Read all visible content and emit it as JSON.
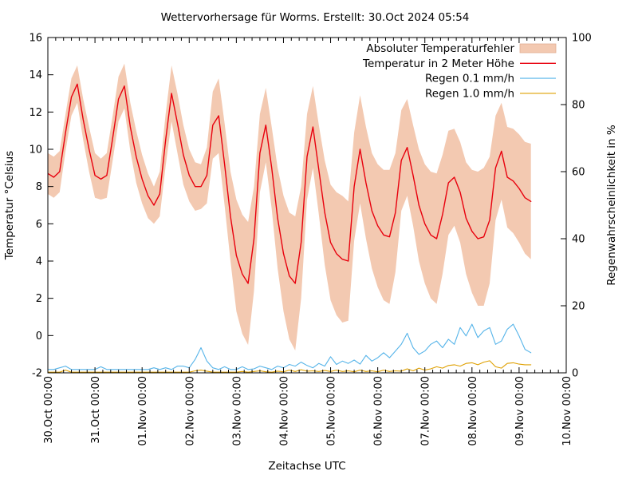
{
  "title": "Wettervorhersage für Worms. Erstellt: 30.Oct 2024 05:54",
  "axes": {
    "x_label": "Zeitachse UTC",
    "y_left_label": "Temperatur °Celsius",
    "y_right_label": "Regenwahrscheinlichkeit in %",
    "y_left_ticks": [
      16,
      14,
      12,
      10,
      8,
      6,
      4,
      2,
      0,
      -2
    ],
    "y_right_ticks": [
      100,
      80,
      60,
      40,
      20,
      0
    ],
    "x_tick_labels": [
      "30.Oct 00:00",
      "31.Oct 00:00",
      "01.Nov 00:00",
      "02.Nov 00:00",
      "03.Nov 00:00",
      "04.Nov 00:00",
      "05.Nov 00:00",
      "06.Nov 00:00",
      "07.Nov 00:00",
      "08.Nov 00:00",
      "09.Nov 00:00",
      "10.Nov 00:00"
    ]
  },
  "legend": [
    {
      "label": "Absoluter Temperaturfehler",
      "type": "band",
      "color": "#f3c9b1"
    },
    {
      "label": "Temperatur in 2 Meter Höhe",
      "type": "line",
      "color": "#e8000d"
    },
    {
      "label": "Regen 0.1 mm/h",
      "type": "line",
      "color": "#56b4e9"
    },
    {
      "label": "Regen 1.0 mm/h",
      "type": "line",
      "color": "#dfa000"
    }
  ],
  "colors": {
    "band": "#f3c9b1",
    "temperature": "#e8000d",
    "rain01": "#56b4e9",
    "rain10": "#dfa000",
    "border": "#000000"
  },
  "chart_data": {
    "type": "line",
    "title": "Wettervorhersage für Worms. Erstellt: 30.Oct 2024 05:54",
    "xlabel": "Zeitachse UTC",
    "ylabel_left": "Temperatur °Celsius",
    "ylabel_right": "Regenwahrscheinlichkeit in %",
    "x_unit": "hours since 30.Oct 2024 00:00 UTC",
    "x_total_hours": 264,
    "temp_axis_range": [
      -2,
      16
    ],
    "rain_axis_range": [
      0,
      100
    ],
    "grid": false,
    "legend_position": "top-right-inside",
    "time_h": [
      0,
      3,
      6,
      9,
      12,
      15,
      18,
      21,
      24,
      27,
      30,
      33,
      36,
      39,
      42,
      45,
      48,
      51,
      54,
      57,
      60,
      63,
      66,
      69,
      72,
      75,
      78,
      81,
      84,
      87,
      90,
      93,
      96,
      99,
      102,
      105,
      108,
      111,
      114,
      117,
      120,
      123,
      126,
      129,
      132,
      135,
      138,
      141,
      144,
      147,
      150,
      153,
      156,
      159,
      162,
      165,
      168,
      171,
      174,
      177,
      180,
      183,
      186,
      189,
      192,
      195,
      198,
      201,
      204,
      207,
      210,
      213,
      216,
      219,
      222,
      225,
      228,
      231,
      234,
      237,
      240,
      243,
      246
    ],
    "series": [
      {
        "name": "Temperatur in 2 Meter Höhe",
        "axis": "left",
        "style": "line",
        "values": [
          8.7,
          8.5,
          8.8,
          10.9,
          12.8,
          13.5,
          11.6,
          10.0,
          8.6,
          8.4,
          8.6,
          10.6,
          12.7,
          13.4,
          11.2,
          9.6,
          8.4,
          7.5,
          7.0,
          7.6,
          10.5,
          13.0,
          11.4,
          9.7,
          8.6,
          8.0,
          8.0,
          8.6,
          11.3,
          11.8,
          9.2,
          6.4,
          4.3,
          3.3,
          2.8,
          5.2,
          9.8,
          11.3,
          9.0,
          6.3,
          4.4,
          3.2,
          2.8,
          5.0,
          9.6,
          11.2,
          8.9,
          6.6,
          5.0,
          4.4,
          4.1,
          4.0,
          8.0,
          10.0,
          8.2,
          6.7,
          5.9,
          5.4,
          5.3,
          6.6,
          9.4,
          10.1,
          8.6,
          7.0,
          6.0,
          5.4,
          5.2,
          6.5,
          8.2,
          8.5,
          7.7,
          6.3,
          5.6,
          5.2,
          5.3,
          6.2,
          9.0,
          9.9,
          8.5,
          8.3,
          7.9,
          7.4,
          7.2
        ]
      },
      {
        "name": "Absoluter Temperaturfehler",
        "axis": "left",
        "style": "band",
        "description": "symmetric half-width around temperature, °C",
        "half_width": [
          1.1,
          1.1,
          1.1,
          1.0,
          1.0,
          1.0,
          1.1,
          1.2,
          1.2,
          1.1,
          1.2,
          1.2,
          1.2,
          1.2,
          1.3,
          1.4,
          1.3,
          1.2,
          1.0,
          1.2,
          1.4,
          1.5,
          1.6,
          1.6,
          1.4,
          1.3,
          1.2,
          1.5,
          1.8,
          2.0,
          2.2,
          2.4,
          3.0,
          3.2,
          3.3,
          2.8,
          2.1,
          2.0,
          2.2,
          2.7,
          3.1,
          3.4,
          3.6,
          3.0,
          2.3,
          2.2,
          2.4,
          2.8,
          3.1,
          3.3,
          3.4,
          3.2,
          2.9,
          2.9,
          3.0,
          3.1,
          3.3,
          3.5,
          3.6,
          3.2,
          2.7,
          2.6,
          2.7,
          3.0,
          3.2,
          3.4,
          3.5,
          3.2,
          2.8,
          2.6,
          2.7,
          3.0,
          3.3,
          3.6,
          3.7,
          3.4,
          2.8,
          2.6,
          2.7,
          2.8,
          2.9,
          3.0,
          3.1
        ]
      },
      {
        "name": "Regen 0.1 mm/h",
        "axis": "right",
        "style": "line",
        "values": [
          1,
          1,
          1.5,
          2,
          1,
          1,
          1,
          1,
          1,
          1.8,
          1,
          1,
          1,
          1,
          1,
          1,
          1,
          1,
          1.5,
          1,
          1.5,
          1,
          2,
          2,
          1.5,
          4,
          7.5,
          3.5,
          1.5,
          1,
          1.8,
          1,
          1,
          1.8,
          1,
          1.2,
          2,
          1.5,
          1,
          2,
          1.5,
          2.5,
          2,
          3.2,
          2.2,
          1.5,
          2.8,
          2,
          4.8,
          2.5,
          3.5,
          2.8,
          3.8,
          2.6,
          5.2,
          3.5,
          4.5,
          6,
          4.5,
          6.5,
          8.5,
          11.8,
          7.5,
          5.5,
          6.5,
          8.5,
          9.5,
          7.5,
          10,
          8.5,
          13.5,
          11,
          14.5,
          10.5,
          12.5,
          13.5,
          8.5,
          9.5,
          13,
          14.5,
          11,
          7,
          6
        ]
      },
      {
        "name": "Regen 1.0 mm/h",
        "axis": "right",
        "style": "line",
        "values": [
          0.2,
          0.2,
          0.2,
          0.8,
          0.2,
          0.2,
          0.2,
          0.2,
          0.2,
          0.2,
          0.2,
          0.2,
          0.2,
          0.2,
          0.2,
          0.2,
          0.2,
          0.2,
          0.2,
          0.2,
          0.2,
          0.2,
          0.2,
          0.2,
          0.2,
          0.6,
          0.8,
          0.5,
          0.2,
          0.2,
          0.2,
          0.2,
          0.2,
          0.4,
          0.2,
          0.4,
          0.6,
          0.3,
          0.2,
          0.5,
          0.3,
          0.8,
          0.4,
          0.9,
          0.5,
          0.6,
          0.4,
          0.7,
          0.4,
          0.8,
          0.4,
          0.6,
          0.3,
          0.8,
          0.4,
          0.6,
          0.3,
          0.8,
          0.4,
          0.6,
          0.5,
          1.2,
          0.6,
          1.4,
          0.8,
          1.2,
          1.8,
          1.4,
          2.2,
          2.4,
          2.0,
          2.8,
          3.0,
          2.4,
          3.2,
          3.6,
          1.8,
          1.4,
          2.8,
          3.0,
          2.6,
          2.4,
          2.4
        ]
      }
    ]
  }
}
